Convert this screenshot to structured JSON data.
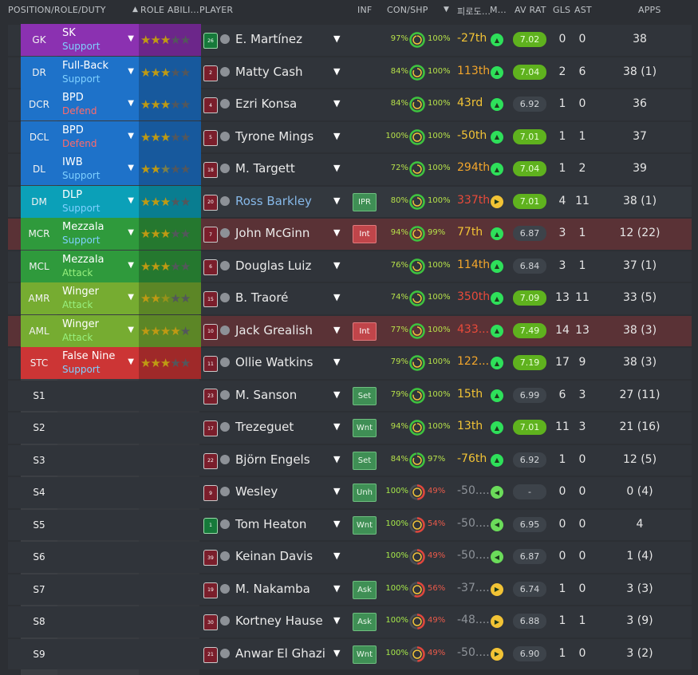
{
  "header": {
    "position": "POSITION/ROLE/DUTY",
    "role_ability": "ROLE ABILI...",
    "player": "PLAYER",
    "inf": "INF",
    "con_shp": "CON/SHP",
    "korean": "피로도...",
    "m": "M...",
    "av_rat": "AV RAT",
    "gls": "GLS",
    "ast": "AST",
    "apps": "APPS"
  },
  "colors": {
    "gk": "#8b31b1",
    "def": "#1e72c9",
    "dm": "#0ba0b8",
    "mid": "#2f9a3c",
    "wide": "#76ac31",
    "att": "#cc3535",
    "support": "#7fd0ff",
    "defend": "#ff6a6a",
    "attack": "#98f07e"
  },
  "rows": [
    {
      "pos": "GK",
      "role": "SK",
      "duty": "Support",
      "group": "gk",
      "stars": 3,
      "kit": "green",
      "num": "26",
      "name": "E. Martínez",
      "inf": "",
      "con": "97%",
      "shp": "100%",
      "rank": "-27th",
      "rank_color": "#f2c335",
      "morale": "A",
      "rating": "7.02",
      "rating_good": true,
      "gls": "0",
      "ast": "0",
      "apps": "38"
    },
    {
      "pos": "DR",
      "role": "Full-Back",
      "duty": "Support",
      "group": "def",
      "stars": 3,
      "kit": "red",
      "num": "2",
      "name": "Matty Cash",
      "inf": "",
      "con": "84%",
      "shp": "100%",
      "rank": "113th",
      "rank_color": "#f2a52b",
      "morale": "A",
      "rating": "7.04",
      "rating_good": true,
      "gls": "2",
      "ast": "6",
      "apps": "38 (1)"
    },
    {
      "pos": "DCR",
      "role": "BPD",
      "duty": "Defend",
      "group": "def",
      "stars": 3,
      "kit": "red",
      "num": "4",
      "name": "Ezri Konsa",
      "inf": "",
      "con": "84%",
      "shp": "100%",
      "rank": "43rd",
      "rank_color": "#f2c335",
      "morale": "A",
      "rating": "6.92",
      "rating_good": false,
      "gls": "1",
      "ast": "0",
      "apps": "36"
    },
    {
      "pos": "DCL",
      "role": "BPD",
      "duty": "Defend",
      "group": "def",
      "stars": 3,
      "kit": "red",
      "num": "5",
      "name": "Tyrone Mings",
      "inf": "",
      "con": "100%",
      "shp": "100%",
      "rank": "-50th",
      "rank_color": "#f2c335",
      "morale": "A",
      "rating": "7.01",
      "rating_good": true,
      "gls": "1",
      "ast": "1",
      "apps": "37"
    },
    {
      "pos": "DL",
      "role": "IWB",
      "duty": "Support",
      "group": "def",
      "stars": 2.5,
      "kit": "red",
      "num": "18",
      "name": "M. Targett",
      "inf": "",
      "con": "72%",
      "shp": "100%",
      "rank": "294th",
      "rank_color": "#f2a52b",
      "morale": "A",
      "rating": "7.04",
      "rating_good": true,
      "gls": "1",
      "ast": "2",
      "apps": "39"
    },
    {
      "pos": "DM",
      "role": "DLP",
      "duty": "Support",
      "group": "dm",
      "stars": 3,
      "kit": "red",
      "num": "20",
      "name": "Ross Barkley",
      "link": true,
      "inf": "IPR",
      "inf_type": "g",
      "con": "80%",
      "shp": "100%",
      "rank": "337th",
      "rank_color": "#ea4a3a",
      "morale": ">",
      "morale_color": "#f2c335",
      "rating": "7.01",
      "rating_good": true,
      "gls": "4",
      "ast": "11",
      "apps": "38 (1)",
      "hl": "green"
    },
    {
      "pos": "MCR",
      "role": "Mezzala",
      "duty": "Support",
      "group": "mid",
      "stars": 3,
      "kit": "red",
      "num": "7",
      "name": "John McGinn",
      "inf": "Int",
      "inf_type": "r",
      "con": "94%",
      "shp": "99%",
      "rank": "77th",
      "rank_color": "#f2c335",
      "morale": "A",
      "rating": "6.87",
      "rating_good": false,
      "gls": "3",
      "ast": "1",
      "apps": "12 (22)",
      "hl": "red"
    },
    {
      "pos": "MCL",
      "role": "Mezzala",
      "duty": "Attack",
      "group": "mid",
      "stars": 3,
      "kit": "red",
      "num": "6",
      "name": "Douglas Luiz",
      "inf": "",
      "con": "76%",
      "shp": "100%",
      "rank": "114th",
      "rank_color": "#f2a52b",
      "morale": "A",
      "rating": "6.84",
      "rating_good": false,
      "gls": "3",
      "ast": "1",
      "apps": "37 (1)"
    },
    {
      "pos": "AMR",
      "role": "Winger",
      "duty": "Attack",
      "group": "wide",
      "stars": 2.5,
      "kit": "red",
      "num": "15",
      "name": "B. Traoré",
      "inf": "",
      "con": "74%",
      "shp": "100%",
      "rank": "350th",
      "rank_color": "#ea4a3a",
      "morale": "A",
      "rating": "7.09",
      "rating_good": true,
      "gls": "13",
      "ast": "11",
      "apps": "33 (5)"
    },
    {
      "pos": "AML",
      "role": "Winger",
      "duty": "Attack",
      "group": "wide",
      "stars": 4,
      "kit": "red",
      "num": "10",
      "name": "Jack Grealish",
      "inf": "Int",
      "inf_type": "r",
      "con": "77%",
      "shp": "100%",
      "rank": "433...",
      "rank_color": "#ea4a3a",
      "morale": "A",
      "rating": "7.49",
      "rating_good": true,
      "gls": "14",
      "ast": "13",
      "apps": "38 (3)",
      "hl": "red"
    },
    {
      "pos": "STC",
      "role": "False Nine",
      "duty": "Support",
      "group": "att",
      "stars": 3,
      "kit": "red",
      "num": "11",
      "name": "Ollie Watkins",
      "inf": "",
      "con": "79%",
      "shp": "100%",
      "rank": "122...",
      "rank_color": "#f2a52b",
      "morale": "A",
      "rating": "7.19",
      "rating_good": true,
      "gls": "17",
      "ast": "9",
      "apps": "38 (3)"
    },
    {
      "pos": "S1",
      "role": "",
      "duty": "",
      "group": "",
      "stars": 0,
      "kit": "red",
      "num": "23",
      "name": "M. Sanson",
      "inf": "Set",
      "inf_type": "g",
      "con": "79%",
      "shp": "100%",
      "rank": "15th",
      "rank_color": "#f2c335",
      "morale": "A",
      "rating": "6.99",
      "rating_good": false,
      "gls": "6",
      "ast": "3",
      "apps": "27 (11)"
    },
    {
      "pos": "S2",
      "role": "",
      "duty": "",
      "group": "",
      "stars": 0,
      "kit": "red",
      "num": "17",
      "name": "Trezeguet",
      "inf": "Wnt",
      "inf_type": "g",
      "con": "94%",
      "shp": "100%",
      "rank": "13th",
      "rank_color": "#f2c335",
      "morale": "A",
      "rating": "7.01",
      "rating_good": true,
      "gls": "11",
      "ast": "3",
      "apps": "21 (16)"
    },
    {
      "pos": "S3",
      "role": "",
      "duty": "",
      "group": "",
      "stars": 0,
      "kit": "red",
      "num": "22",
      "name": "Björn Engels",
      "inf": "Set",
      "inf_type": "g",
      "con": "84%",
      "shp": "97%",
      "rank": "-76th",
      "rank_color": "#f2c335",
      "morale": "A",
      "rating": "6.92",
      "rating_good": false,
      "gls": "1",
      "ast": "0",
      "apps": "12 (5)"
    },
    {
      "pos": "S4",
      "role": "",
      "duty": "",
      "group": "",
      "stars": 0,
      "kit": "red",
      "num": "9",
      "name": "Wesley",
      "inf": "Unh",
      "inf_type": "g",
      "con": "100%",
      "shp": "49%",
      "rank": "-50....",
      "rank_color": "#8e9399",
      "morale": "<",
      "morale_color": "#6bdc5a",
      "rating": "-",
      "rating_good": false,
      "gls": "0",
      "ast": "0",
      "apps": "0 (4)",
      "low": true
    },
    {
      "pos": "S5",
      "role": "",
      "duty": "",
      "group": "",
      "stars": 0,
      "kit": "green",
      "num": "1",
      "name": "Tom Heaton",
      "inf": "Wnt",
      "inf_type": "g",
      "con": "100%",
      "shp": "54%",
      "rank": "-50....",
      "rank_color": "#8e9399",
      "morale": "<",
      "morale_color": "#6bdc5a",
      "rating": "6.95",
      "rating_good": false,
      "gls": "0",
      "ast": "0",
      "apps": "4",
      "low": true
    },
    {
      "pos": "S6",
      "role": "",
      "duty": "",
      "group": "",
      "stars": 0,
      "kit": "red",
      "num": "39",
      "name": "Keinan Davis",
      "inf": "",
      "con": "100%",
      "shp": "49%",
      "rank": "-50....",
      "rank_color": "#8e9399",
      "morale": "<",
      "morale_color": "#6bdc5a",
      "rating": "6.87",
      "rating_good": false,
      "gls": "0",
      "ast": "0",
      "apps": "1 (4)",
      "low": true
    },
    {
      "pos": "S7",
      "role": "",
      "duty": "",
      "group": "",
      "stars": 0,
      "kit": "red",
      "num": "19",
      "name": "M. Nakamba",
      "inf": "Ask",
      "inf_type": "g",
      "con": "100%",
      "shp": "56%",
      "rank": "-37....",
      "rank_color": "#8e9399",
      "morale": ">",
      "morale_color": "#f2c335",
      "rating": "6.74",
      "rating_good": false,
      "gls": "1",
      "ast": "0",
      "apps": "3 (3)",
      "low": true
    },
    {
      "pos": "S8",
      "role": "",
      "duty": "",
      "group": "",
      "stars": 0,
      "kit": "red",
      "num": "30",
      "name": "Kortney Hause",
      "inf": "Ask",
      "inf_type": "g",
      "con": "100%",
      "shp": "49%",
      "rank": "-48....",
      "rank_color": "#8e9399",
      "morale": ">",
      "morale_color": "#f2c335",
      "rating": "6.88",
      "rating_good": false,
      "gls": "1",
      "ast": "1",
      "apps": "3 (9)",
      "low": true
    },
    {
      "pos": "S9",
      "role": "",
      "duty": "",
      "group": "",
      "stars": 0,
      "kit": "red",
      "num": "21",
      "name": "Anwar El Ghazi",
      "inf": "Wnt",
      "inf_type": "g",
      "con": "100%",
      "shp": "49%",
      "rank": "-50....",
      "rank_color": "#8e9399",
      "morale": ">",
      "morale_color": "#f2c335",
      "rating": "6.90",
      "rating_good": false,
      "gls": "1",
      "ast": "0",
      "apps": "3 (2)",
      "low": true
    }
  ]
}
